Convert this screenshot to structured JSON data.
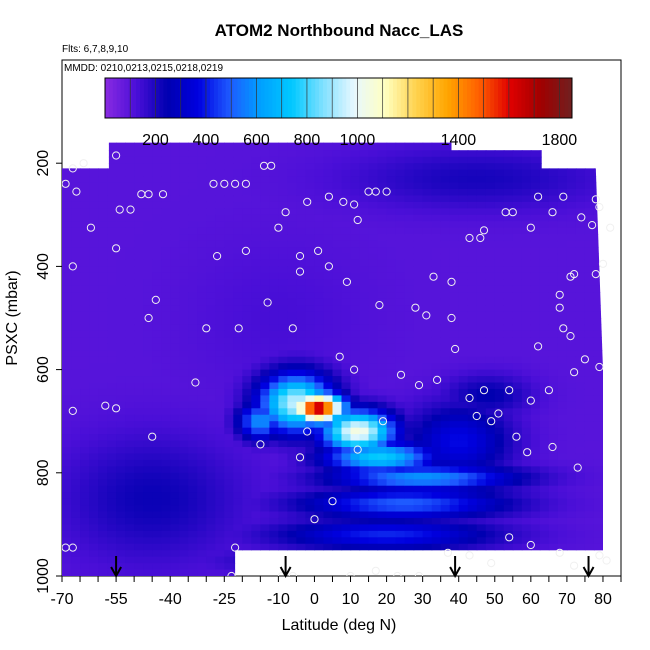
{
  "chart_data": {
    "type": "heatmap",
    "title": "ATOM2 Northbound Nacc_LAS",
    "flights_note": "Flts: 6,7,8,9,10",
    "dates_note": "MMDD: 0210,0213,0215,0218,0219",
    "xlabel": "Latitude (deg N)",
    "ylabel": "PSXC (mbar)",
    "xlim": [
      -70,
      85
    ],
    "ylim": [
      1000,
      0
    ],
    "x_ticks": [
      "-70",
      "-55",
      "-40",
      "-25",
      "-10",
      "0",
      "10",
      "20",
      "30",
      "40",
      "50",
      "60",
      "70",
      "80"
    ],
    "x_tick_values": [
      -70,
      -55,
      -40,
      -25,
      -10,
      0,
      10,
      20,
      30,
      40,
      50,
      60,
      70,
      80
    ],
    "y_ticks": [
      "200",
      "400",
      "600",
      "800",
      "1000"
    ],
    "y_tick_values": [
      200,
      400,
      600,
      800,
      1000
    ],
    "colorbar": {
      "range": [
        0,
        1850
      ],
      "tick_labels": [
        "200",
        "400",
        "600",
        "800",
        "1000",
        "1400",
        "1800"
      ],
      "tick_values": [
        200,
        400,
        600,
        800,
        1000,
        1400,
        1800
      ],
      "colors": [
        "#8a2be2",
        "#4b0fd8",
        "#0000b0",
        "#0000e0",
        "#1e5aff",
        "#00a0ff",
        "#00c8ff",
        "#7fe0ff",
        "#e8f8ff",
        "#ffffc0",
        "#ffd24d",
        "#ffa500",
        "#ff6000",
        "#e00000",
        "#a00000",
        "#702020"
      ]
    },
    "flight_markers_latitude": [
      -55,
      -8,
      39,
      76
    ],
    "domain_boundary": [
      [
        -57,
        160
      ],
      [
        -57,
        210
      ],
      [
        -70,
        210
      ],
      [
        -70,
        1000
      ],
      [
        -22,
        1000
      ],
      [
        -22,
        950
      ],
      [
        80,
        950
      ],
      [
        80,
        600
      ],
      [
        78,
        210
      ],
      [
        63,
        210
      ],
      [
        63,
        175
      ],
      [
        38,
        175
      ],
      [
        38,
        160
      ]
    ],
    "background_value": 100,
    "features": [
      {
        "lat": 1,
        "p": 675,
        "value": 1700,
        "lat_halfwidth": 7,
        "p_halfwidth": 28
      },
      {
        "lat": -5,
        "p": 665,
        "value": 950,
        "lat_halfwidth": 10,
        "p_halfwidth": 55
      },
      {
        "lat": 12,
        "p": 720,
        "value": 1050,
        "lat_halfwidth": 10,
        "p_halfwidth": 40
      },
      {
        "lat": 18,
        "p": 770,
        "value": 750,
        "lat_halfwidth": 15,
        "p_halfwidth": 30
      },
      {
        "lat": 30,
        "p": 810,
        "value": 600,
        "lat_halfwidth": 25,
        "p_halfwidth": 25
      },
      {
        "lat": 25,
        "p": 860,
        "value": 500,
        "lat_halfwidth": 28,
        "p_halfwidth": 30
      },
      {
        "lat": 20,
        "p": 920,
        "value": 420,
        "lat_halfwidth": 30,
        "p_halfwidth": 30
      },
      {
        "lat": 10,
        "p": 970,
        "value": 320,
        "lat_halfwidth": 30,
        "p_halfwidth": 25
      },
      {
        "lat": 40,
        "p": 740,
        "value": 380,
        "lat_halfwidth": 14,
        "p_halfwidth": 70
      },
      {
        "lat": 48,
        "p": 650,
        "value": 250,
        "lat_halfwidth": 12,
        "p_halfwidth": 40
      },
      {
        "lat": -45,
        "p": 850,
        "value": 230,
        "lat_halfwidth": 25,
        "p_halfwidth": 120
      },
      {
        "lat": 45,
        "p": 230,
        "value": 210,
        "lat_halfwidth": 35,
        "p_halfwidth": 60
      },
      {
        "lat": -10,
        "p": 500,
        "value": 130,
        "lat_halfwidth": 25,
        "p_halfwidth": 150
      },
      {
        "lat": -15,
        "p": 700,
        "value": 600,
        "lat_halfwidth": 6,
        "p_halfwidth": 35
      }
    ],
    "sample_points": [
      [
        -55,
        185
      ],
      [
        -64,
        200
      ],
      [
        -67,
        210
      ],
      [
        -69,
        240
      ],
      [
        -66,
        255
      ],
      [
        -62,
        325
      ],
      [
        -48,
        260
      ],
      [
        -46,
        260
      ],
      [
        -42,
        260
      ],
      [
        -54,
        290
      ],
      [
        -51,
        290
      ],
      [
        -55,
        365
      ],
      [
        -67,
        400
      ],
      [
        -28,
        240
      ],
      [
        -25,
        240
      ],
      [
        -22,
        240
      ],
      [
        -19,
        240
      ],
      [
        -14,
        205
      ],
      [
        -12,
        205
      ],
      [
        -8,
        295
      ],
      [
        -2,
        275
      ],
      [
        4,
        265
      ],
      [
        8,
        275
      ],
      [
        -10,
        325
      ],
      [
        -27,
        380
      ],
      [
        -19,
        370
      ],
      [
        -4,
        380
      ],
      [
        1,
        370
      ],
      [
        11,
        280
      ],
      [
        15,
        255
      ],
      [
        17,
        255
      ],
      [
        20,
        255
      ],
      [
        12,
        310
      ],
      [
        -13,
        470
      ],
      [
        -46,
        500
      ],
      [
        -44,
        465
      ],
      [
        -58,
        670
      ],
      [
        -55,
        675
      ],
      [
        -67,
        680
      ],
      [
        -67,
        945
      ],
      [
        -69,
        945
      ],
      [
        -45,
        730
      ],
      [
        -33,
        625
      ],
      [
        -30,
        520
      ],
      [
        -21,
        520
      ],
      [
        -6,
        520
      ],
      [
        4,
        400
      ],
      [
        9,
        430
      ],
      [
        18,
        475
      ],
      [
        28,
        480
      ],
      [
        31,
        495
      ],
      [
        33,
        420
      ],
      [
        38,
        500
      ],
      [
        38,
        430
      ],
      [
        43,
        345
      ],
      [
        47,
        330
      ],
      [
        46,
        345
      ],
      [
        55,
        295
      ],
      [
        53,
        295
      ],
      [
        60,
        325
      ],
      [
        62,
        265
      ],
      [
        66,
        295
      ],
      [
        69,
        265
      ],
      [
        74,
        305
      ],
      [
        77,
        320
      ],
      [
        79,
        285
      ],
      [
        78,
        270
      ],
      [
        82,
        325
      ],
      [
        80,
        395
      ],
      [
        78,
        415
      ],
      [
        72,
        415
      ],
      [
        71,
        420
      ],
      [
        68,
        455
      ],
      [
        68,
        480
      ],
      [
        69,
        520
      ],
      [
        71,
        535
      ],
      [
        75,
        580
      ],
      [
        79,
        595
      ],
      [
        62,
        555
      ],
      [
        72,
        605
      ],
      [
        65,
        640
      ],
      [
        60,
        660
      ],
      [
        54,
        640
      ],
      [
        47,
        640
      ],
      [
        45,
        690
      ],
      [
        49,
        700
      ],
      [
        56,
        730
      ],
      [
        59,
        760
      ],
      [
        66,
        750
      ],
      [
        73,
        790
      ],
      [
        54,
        925
      ],
      [
        60,
        940
      ],
      [
        68,
        955
      ],
      [
        79,
        960
      ],
      [
        81,
        970
      ],
      [
        72,
        980
      ],
      [
        49,
        975
      ],
      [
        43,
        960
      ],
      [
        37,
        955
      ],
      [
        29,
        1000
      ],
      [
        23,
        1000
      ],
      [
        17,
        990
      ],
      [
        -6,
        1000
      ],
      [
        -9,
        1000
      ],
      [
        -23,
        1000
      ],
      [
        10,
        1000
      ],
      [
        -15,
        745
      ],
      [
        -4,
        410
      ],
      [
        -2,
        720
      ],
      [
        5,
        855
      ],
      [
        7,
        575
      ],
      [
        11,
        600
      ],
      [
        12,
        755
      ],
      [
        19,
        700
      ],
      [
        24,
        610
      ],
      [
        29,
        630
      ],
      [
        34,
        620
      ],
      [
        39,
        560
      ],
      [
        43,
        655
      ],
      [
        51,
        685
      ],
      [
        0,
        890
      ],
      [
        -22,
        945
      ],
      [
        -4,
        770
      ]
    ]
  }
}
